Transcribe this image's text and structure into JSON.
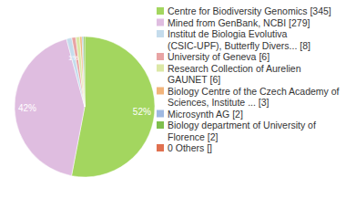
{
  "chart_data": {
    "type": "pie",
    "categories": [
      "Centre for Biodiversity Genomics [345]",
      "Mined from GenBank, NCBI [279]",
      "Institut de Biologia Evolutiva (CSIC-UPF), Butterfly Divers... [8]",
      "University of Geneva [6]",
      "Research Collection of Aurelien GAUNET [6]",
      "Biology Centre of the Czech Academy of Sciences, Institute ... [3]",
      "Microsynth AG [2]",
      "Biology department of University of Florence [2]",
      "0 Others []"
    ],
    "values": [
      52,
      42,
      1.2,
      0.9,
      0.9,
      0.5,
      0.3,
      0.3,
      0
    ],
    "value_labels": [
      "52%",
      "42%",
      "1%",
      null,
      null,
      null,
      null,
      null,
      null
    ],
    "colors": [
      "#a3d65f",
      "#dfbde0",
      "#c5dcec",
      "#e8a4a4",
      "#dce8a6",
      "#f2b47a",
      "#9fb9e2",
      "#7fbf4d",
      "#e0704f"
    ],
    "data_labels": true,
    "legend": "right"
  }
}
